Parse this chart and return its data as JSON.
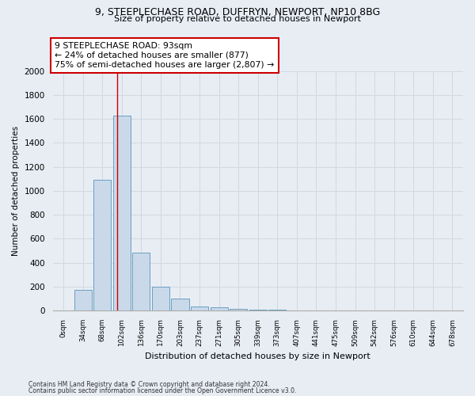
{
  "title1": "9, STEEPLECHASE ROAD, DUFFRYN, NEWPORT, NP10 8BG",
  "title2": "Size of property relative to detached houses in Newport",
  "xlabel": "Distribution of detached houses by size in Newport",
  "ylabel": "Number of detached properties",
  "footnote1": "Contains HM Land Registry data © Crown copyright and database right 2024.",
  "footnote2": "Contains public sector information licensed under the Open Government Licence v3.0.",
  "bar_labels": [
    "0sqm",
    "34sqm",
    "68sqm",
    "102sqm",
    "136sqm",
    "170sqm",
    "203sqm",
    "237sqm",
    "271sqm",
    "305sqm",
    "339sqm",
    "373sqm",
    "407sqm",
    "441sqm",
    "475sqm",
    "509sqm",
    "542sqm",
    "576sqm",
    "610sqm",
    "644sqm",
    "678sqm"
  ],
  "bar_values": [
    0,
    175,
    1090,
    1625,
    480,
    200,
    100,
    35,
    25,
    15,
    5,
    5,
    3,
    2,
    1,
    1,
    0,
    0,
    0,
    0,
    0
  ],
  "bar_color": "#c9d9ea",
  "bar_edge_color": "#6a9fc0",
  "grid_color": "#d0d8e0",
  "bg_color": "#e8edf4",
  "vline_x": 2.75,
  "vline_color": "#cc0000",
  "annotation_text": "9 STEEPLECHASE ROAD: 93sqm\n← 24% of detached houses are smaller (877)\n75% of semi-detached houses are larger (2,807) →",
  "annotation_box_facecolor": "#ffffff",
  "annotation_box_edgecolor": "#cc0000",
  "ylim": [
    0,
    2000
  ],
  "yticks": [
    0,
    200,
    400,
    600,
    800,
    1000,
    1200,
    1400,
    1600,
    1800,
    2000
  ]
}
